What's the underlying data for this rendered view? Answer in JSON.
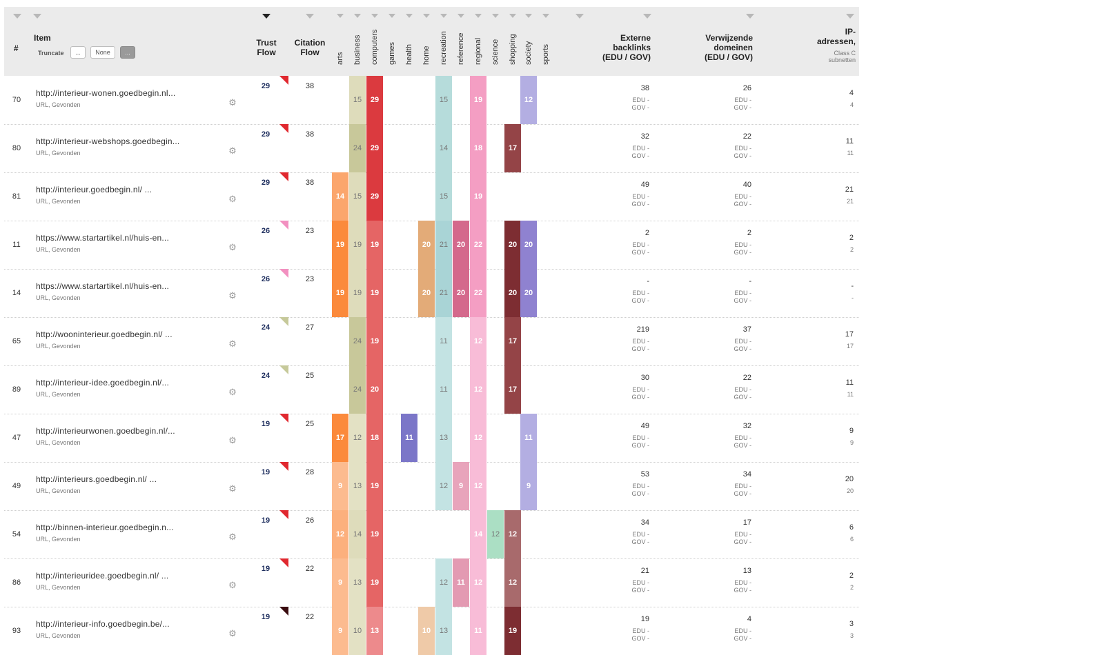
{
  "header": {
    "num_label": "#",
    "item_label": "Item",
    "truncate_label": "Truncate",
    "truncate_buttons": [
      "...",
      "None",
      "..."
    ],
    "trust_flow_label": "Trust\nFlow",
    "citation_flow_label": "Citation\nFlow",
    "backlinks_label": "Externe\nbacklinks\n(EDU / GOV)",
    "domains_label": "Verwijzende\ndomeinen\n(EDU / GOV)",
    "ip_label": "IP-\nadressen,",
    "ip_sub": "Class C\nsubnetten"
  },
  "topics": [
    {
      "key": "arts",
      "label": "arts"
    },
    {
      "key": "business",
      "label": "business"
    },
    {
      "key": "computers",
      "label": "computers"
    },
    {
      "key": "games",
      "label": "games"
    },
    {
      "key": "health",
      "label": "health"
    },
    {
      "key": "home",
      "label": "home"
    },
    {
      "key": "recreation",
      "label": "recreation"
    },
    {
      "key": "reference",
      "label": "reference"
    },
    {
      "key": "regional",
      "label": "regional"
    },
    {
      "key": "science",
      "label": "science"
    },
    {
      "key": "shopping",
      "label": "shopping"
    },
    {
      "key": "society",
      "label": "society"
    },
    {
      "key": "sports",
      "label": "sports"
    }
  ],
  "row_meta_text": "URL, Gevonden",
  "edu_label": "EDU -",
  "gov_label": "GOV -",
  "rows": [
    {
      "num": "70",
      "url": "http://interieur-wonen.goedbegin.nl...",
      "tf": "29",
      "tf_flag": "#e0282f",
      "cf": "38",
      "topics": {
        "business": {
          "v": "15",
          "c": "#dedcbb",
          "t": "l"
        },
        "computers": {
          "v": "29",
          "c": "#db3a3f",
          "t": "d"
        },
        "recreation": {
          "v": "15",
          "c": "#b6dcdb",
          "t": "l"
        },
        "regional": {
          "v": "19",
          "c": "#f49ec3",
          "t": "d"
        },
        "society": {
          "v": "12",
          "c": "#b3aee2",
          "t": "d"
        }
      },
      "backlinks": "38",
      "domains": "26",
      "ip": "4",
      "ip_sub": "4"
    },
    {
      "num": "80",
      "url": "http://interieur-webshops.goedbegin...",
      "tf": "29",
      "tf_flag": "#e0282f",
      "cf": "38",
      "topics": {
        "business": {
          "v": "24",
          "c": "#c8c89a",
          "t": "l"
        },
        "computers": {
          "v": "29",
          "c": "#db3a3f",
          "t": "d"
        },
        "recreation": {
          "v": "14",
          "c": "#b6dcdb",
          "t": "l"
        },
        "regional": {
          "v": "18",
          "c": "#f49ec3",
          "t": "d"
        },
        "shopping": {
          "v": "17",
          "c": "#944447",
          "t": "d"
        }
      },
      "backlinks": "32",
      "domains": "22",
      "ip": "11",
      "ip_sub": "11"
    },
    {
      "num": "81",
      "url": "http://interieur.goedbegin.nl/ ...",
      "tf": "29",
      "tf_flag": "#e0282f",
      "cf": "38",
      "topics": {
        "arts": {
          "v": "14",
          "c": "#fba66d",
          "t": "d"
        },
        "business": {
          "v": "15",
          "c": "#dedcbb",
          "t": "l"
        },
        "computers": {
          "v": "29",
          "c": "#db3a3f",
          "t": "d"
        },
        "recreation": {
          "v": "15",
          "c": "#b6dcdb",
          "t": "l"
        },
        "regional": {
          "v": "19",
          "c": "#f49ec3",
          "t": "d"
        }
      },
      "backlinks": "49",
      "domains": "40",
      "ip": "21",
      "ip_sub": "21"
    },
    {
      "num": "11",
      "url": "https://www.startartikel.nl/huis-en...",
      "tf": "26",
      "tf_flag": "#f290c0",
      "cf": "23",
      "topics": {
        "arts": {
          "v": "19",
          "c": "#fb8a3c",
          "t": "d"
        },
        "business": {
          "v": "19",
          "c": "#dedcbb",
          "t": "l"
        },
        "computers": {
          "v": "19",
          "c": "#e56565",
          "t": "d"
        },
        "home": {
          "v": "20",
          "c": "#e3ab78",
          "t": "d"
        },
        "recreation": {
          "v": "21",
          "c": "#a9d4d6",
          "t": "l"
        },
        "reference": {
          "v": "20",
          "c": "#d4698c",
          "t": "d"
        },
        "regional": {
          "v": "22",
          "c": "#f49ec3",
          "t": "d"
        },
        "shopping": {
          "v": "20",
          "c": "#7d2d32",
          "t": "d"
        },
        "society": {
          "v": "20",
          "c": "#8f82d0",
          "t": "d"
        }
      },
      "backlinks": "2",
      "domains": "2",
      "ip": "2",
      "ip_sub": "2"
    },
    {
      "num": "14",
      "url": "https://www.startartikel.nl/huis-en...",
      "tf": "26",
      "tf_flag": "#f290c0",
      "cf": "23",
      "topics": {
        "arts": {
          "v": "19",
          "c": "#fb8a3c",
          "t": "d"
        },
        "business": {
          "v": "19",
          "c": "#dedcbb",
          "t": "l"
        },
        "computers": {
          "v": "19",
          "c": "#e56565",
          "t": "d"
        },
        "home": {
          "v": "20",
          "c": "#e3ab78",
          "t": "d"
        },
        "recreation": {
          "v": "21",
          "c": "#a9d4d6",
          "t": "l"
        },
        "reference": {
          "v": "20",
          "c": "#d4698c",
          "t": "d"
        },
        "regional": {
          "v": "22",
          "c": "#f49ec3",
          "t": "d"
        },
        "shopping": {
          "v": "20",
          "c": "#7d2d32",
          "t": "d"
        },
        "society": {
          "v": "20",
          "c": "#8f82d0",
          "t": "d"
        }
      },
      "backlinks": "-",
      "domains": "-",
      "ip": "-",
      "ip_sub": "-"
    },
    {
      "num": "65",
      "url": "http://wooninterieur.goedbegin.nl/ ...",
      "tf": "24",
      "tf_flag": "#c6c99a",
      "cf": "27",
      "topics": {
        "business": {
          "v": "24",
          "c": "#c8c89a",
          "t": "l"
        },
        "computers": {
          "v": "19",
          "c": "#e56565",
          "t": "d"
        },
        "recreation": {
          "v": "11",
          "c": "#c3e3e3",
          "t": "l"
        },
        "regional": {
          "v": "12",
          "c": "#f8bcd7",
          "t": "d"
        },
        "shopping": {
          "v": "17",
          "c": "#944447",
          "t": "d"
        }
      },
      "backlinks": "219",
      "domains": "37",
      "ip": "17",
      "ip_sub": "17"
    },
    {
      "num": "89",
      "url": "http://interieur-idee.goedbegin.nl/...",
      "tf": "24",
      "tf_flag": "#c6c99a",
      "cf": "25",
      "topics": {
        "business": {
          "v": "24",
          "c": "#c8c89a",
          "t": "l"
        },
        "computers": {
          "v": "20",
          "c": "#e56565",
          "t": "d"
        },
        "recreation": {
          "v": "11",
          "c": "#c3e3e3",
          "t": "l"
        },
        "regional": {
          "v": "12",
          "c": "#f8bcd7",
          "t": "d"
        },
        "shopping": {
          "v": "17",
          "c": "#944447",
          "t": "d"
        }
      },
      "backlinks": "30",
      "domains": "22",
      "ip": "11",
      "ip_sub": "11"
    },
    {
      "num": "47",
      "url": "http://interieurwonen.goedbegin.nl/...",
      "tf": "19",
      "tf_flag": "#e0282f",
      "cf": "25",
      "topics": {
        "arts": {
          "v": "17",
          "c": "#fb8a3c",
          "t": "d"
        },
        "business": {
          "v": "12",
          "c": "#e3e1c4",
          "t": "l"
        },
        "computers": {
          "v": "18",
          "c": "#e56565",
          "t": "d"
        },
        "health": {
          "v": "11",
          "c": "#7b76c8",
          "t": "d"
        },
        "recreation": {
          "v": "13",
          "c": "#c3e3e3",
          "t": "l"
        },
        "regional": {
          "v": "12",
          "c": "#f8bcd7",
          "t": "d"
        },
        "society": {
          "v": "11",
          "c": "#b3aee2",
          "t": "d"
        }
      },
      "backlinks": "49",
      "domains": "32",
      "ip": "9",
      "ip_sub": "9"
    },
    {
      "num": "49",
      "url": "http://interieurs.goedbegin.nl/ ...",
      "tf": "19",
      "tf_flag": "#e0282f",
      "cf": "28",
      "topics": {
        "arts": {
          "v": "9",
          "c": "#fcbb8f",
          "t": "d"
        },
        "business": {
          "v": "13",
          "c": "#e3e1c4",
          "t": "l"
        },
        "computers": {
          "v": "19",
          "c": "#e56565",
          "t": "d"
        },
        "recreation": {
          "v": "12",
          "c": "#c3e3e3",
          "t": "l"
        },
        "reference": {
          "v": "9",
          "c": "#e8a4bb",
          "t": "d"
        },
        "regional": {
          "v": "12",
          "c": "#f8bcd7",
          "t": "d"
        },
        "society": {
          "v": "9",
          "c": "#b3aee2",
          "t": "d"
        }
      },
      "backlinks": "53",
      "domains": "34",
      "ip": "20",
      "ip_sub": "20"
    },
    {
      "num": "54",
      "url": "http://binnen-interieur.goedbegin.n...",
      "tf": "19",
      "tf_flag": "#e0282f",
      "cf": "26",
      "topics": {
        "arts": {
          "v": "12",
          "c": "#fcb07d",
          "t": "d"
        },
        "business": {
          "v": "14",
          "c": "#dedcbb",
          "t": "l"
        },
        "computers": {
          "v": "19",
          "c": "#e56565",
          "t": "d"
        },
        "regional": {
          "v": "14",
          "c": "#f8bcd7",
          "t": "d"
        },
        "science": {
          "v": "12",
          "c": "#abdfc4",
          "t": "l"
        },
        "shopping": {
          "v": "12",
          "c": "#a86a6c",
          "t": "d"
        }
      },
      "backlinks": "34",
      "domains": "17",
      "ip": "6",
      "ip_sub": "6"
    },
    {
      "num": "86",
      "url": "http://interieuridee.goedbegin.nl/ ...",
      "tf": "19",
      "tf_flag": "#e0282f",
      "cf": "22",
      "topics": {
        "arts": {
          "v": "9",
          "c": "#fcbb8f",
          "t": "d"
        },
        "business": {
          "v": "13",
          "c": "#e3e1c4",
          "t": "l"
        },
        "computers": {
          "v": "19",
          "c": "#e56565",
          "t": "d"
        },
        "recreation": {
          "v": "12",
          "c": "#c3e3e3",
          "t": "l"
        },
        "reference": {
          "v": "11",
          "c": "#e39ab2",
          "t": "d"
        },
        "regional": {
          "v": "12",
          "c": "#f8bcd7",
          "t": "d"
        },
        "shopping": {
          "v": "12",
          "c": "#a86a6c",
          "t": "d"
        }
      },
      "backlinks": "21",
      "domains": "13",
      "ip": "2",
      "ip_sub": "2"
    },
    {
      "num": "93",
      "url": "http://interieur-info.goedbegin.be/...",
      "tf": "19",
      "tf_flag": "#3a0c10",
      "cf": "22",
      "topics": {
        "arts": {
          "v": "9",
          "c": "#fcbb8f",
          "t": "d"
        },
        "business": {
          "v": "10",
          "c": "#e3e1c4",
          "t": "l"
        },
        "computers": {
          "v": "13",
          "c": "#ed8a8c",
          "t": "d"
        },
        "home": {
          "v": "10",
          "c": "#efcaa8",
          "t": "d"
        },
        "recreation": {
          "v": "13",
          "c": "#c3e3e3",
          "t": "l"
        },
        "regional": {
          "v": "11",
          "c": "#f8bcd7",
          "t": "d"
        },
        "shopping": {
          "v": "19",
          "c": "#7d2d32",
          "t": "d"
        }
      },
      "backlinks": "19",
      "domains": "4",
      "ip": "3",
      "ip_sub": "3"
    }
  ]
}
